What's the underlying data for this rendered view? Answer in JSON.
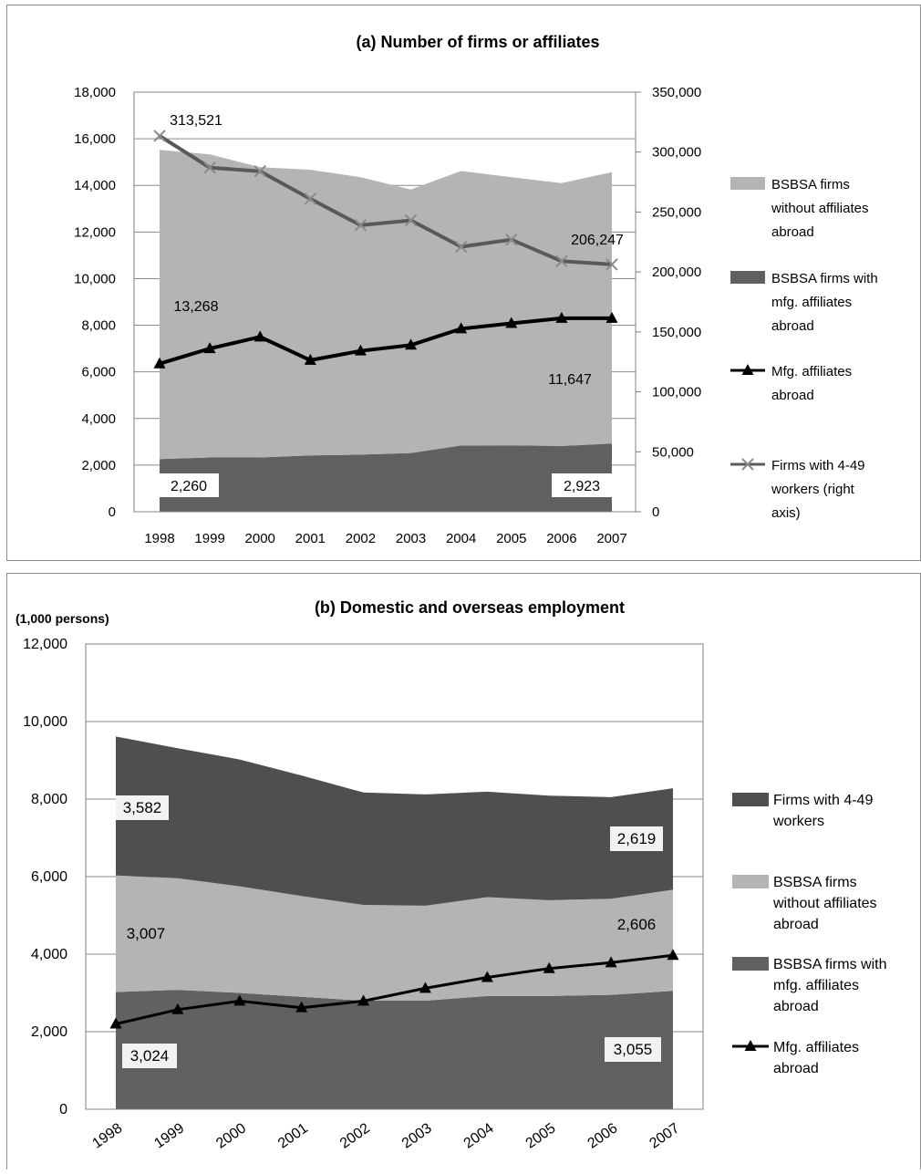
{
  "chart_data": [
    {
      "type": "area",
      "title": "(a) Number of firms or affiliates",
      "categories": [
        "1998",
        "1999",
        "2000",
        "2001",
        "2002",
        "2003",
        "2004",
        "2005",
        "2006",
        "2007"
      ],
      "left_axis": {
        "ylim": [
          0,
          18000
        ],
        "ticks": [
          "0",
          "2,000",
          "4,000",
          "6,000",
          "8,000",
          "10,000",
          "12,000",
          "14,000",
          "16,000",
          "18,000"
        ]
      },
      "right_axis": {
        "ylim": [
          0,
          350000
        ],
        "ticks": [
          "0",
          "50,000",
          "100,000",
          "150,000",
          "200,000",
          "250,000",
          "300,000",
          "350,000"
        ]
      },
      "grid": true,
      "legend_position": "right",
      "series": [
        {
          "name": "BSBSA firms with mfg. affiliates abroad",
          "kind": "area",
          "stack": true,
          "axis": "left",
          "color": "#606060",
          "values": [
            2260,
            2330,
            2330,
            2420,
            2450,
            2520,
            2840,
            2850,
            2820,
            2923
          ]
        },
        {
          "name": "BSBSA firms without affiliates abroad",
          "kind": "area",
          "stack": true,
          "axis": "left",
          "color": "#b4b4b4",
          "values": [
            13268,
            13000,
            12450,
            12250,
            11900,
            11300,
            11780,
            11500,
            11280,
            11647
          ]
        },
        {
          "name": "Mfg. affiliates abroad",
          "kind": "line",
          "marker": "triangle",
          "axis": "left",
          "color": "#000000",
          "values": [
            6350,
            7000,
            7500,
            6500,
            6900,
            7150,
            7850,
            8080,
            8300,
            8300
          ]
        },
        {
          "name": "Firms with 4-49 workers (right axis)",
          "kind": "line",
          "marker": "x",
          "axis": "right",
          "color": "#595959",
          "values": [
            313521,
            287000,
            284000,
            261000,
            239000,
            243000,
            221000,
            227000,
            209000,
            206247
          ]
        }
      ],
      "annotations": [
        "313,521",
        "206,247",
        "13,268",
        "11,647",
        "2,260",
        "2,923"
      ]
    },
    {
      "type": "area",
      "title": "(b) Domestic and overseas employment",
      "unit_label": "(1,000 persons)",
      "categories": [
        "1998",
        "1999",
        "2000",
        "2001",
        "2002",
        "2003",
        "2004",
        "2005",
        "2006",
        "2007"
      ],
      "ylim": [
        0,
        12000
      ],
      "yticks": [
        "0",
        "2,000",
        "4,000",
        "6,000",
        "8,000",
        "10,000",
        "12,000"
      ],
      "grid": true,
      "legend_position": "right",
      "series": [
        {
          "name": "BSBSA firms with mfg. affiliates abroad",
          "kind": "area",
          "stack": true,
          "color": "#616161",
          "values": [
            3024,
            3080,
            3000,
            2900,
            2800,
            2800,
            2920,
            2920,
            2950,
            3055
          ]
        },
        {
          "name": "BSBSA firms without affiliates abroad",
          "kind": "area",
          "stack": true,
          "color": "#b4b4b4",
          "values": [
            3007,
            2880,
            2750,
            2600,
            2470,
            2450,
            2550,
            2470,
            2480,
            2606
          ]
        },
        {
          "name": "Firms with 4-49 workers",
          "kind": "area",
          "stack": true,
          "color": "#4f4f4f",
          "values": [
            3582,
            3350,
            3270,
            3110,
            2900,
            2870,
            2720,
            2700,
            2620,
            2619
          ]
        },
        {
          "name": "Mfg. affiliates abroad",
          "kind": "line",
          "marker": "triangle",
          "color": "#000000",
          "values": [
            2200,
            2570,
            2790,
            2620,
            2790,
            3120,
            3400,
            3630,
            3780,
            3970
          ]
        }
      ],
      "annotations": [
        "3,582",
        "2,619",
        "3,007",
        "2,606",
        "3,024",
        "3,055"
      ]
    }
  ]
}
